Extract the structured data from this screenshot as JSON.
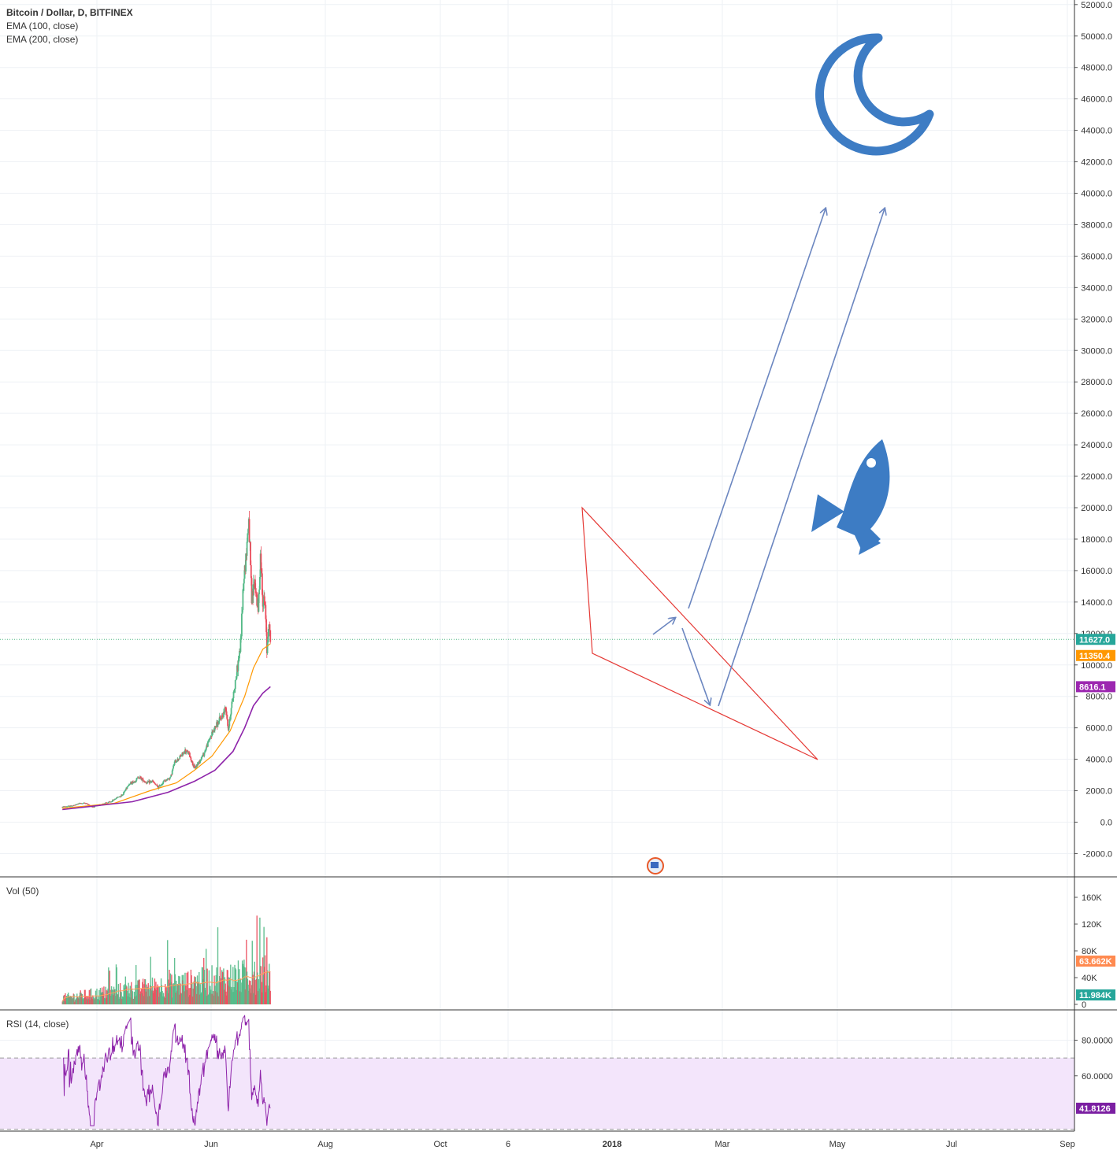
{
  "chart_data": [
    {
      "type": "candlestick",
      "pane": "price",
      "title": "Bitcoin / Dollar, D, BITFINEX",
      "indicators": [
        "EMA (100, close)",
        "EMA (200, close)"
      ],
      "y_ticks": [
        "52000.0",
        "50000.0",
        "48000.0",
        "46000.0",
        "44000.0",
        "42000.0",
        "40000.0",
        "38000.0",
        "36000.0",
        "34000.0",
        "32000.0",
        "30000.0",
        "28000.0",
        "26000.0",
        "24000.0",
        "22000.0",
        "20000.0",
        "18000.0",
        "16000.0",
        "14000.0",
        "12000.0",
        "10000.0",
        "8000.0",
        "6000.0",
        "4000.0",
        "2000.0",
        "0.0",
        "-2000.0"
      ],
      "ylim": [
        -2000,
        52000
      ],
      "x_labels": [
        "Apr",
        "Jun",
        "Aug",
        "Oct",
        "6",
        "2018",
        "Mar",
        "May",
        "Jul",
        "Sep"
      ],
      "close_path": [
        [
          "2017-02-01",
          970
        ],
        [
          "2017-02-20",
          1050
        ],
        [
          "2017-03-01",
          1180
        ],
        [
          "2017-03-12",
          1220
        ],
        [
          "2017-03-25",
          960
        ],
        [
          "2017-04-10",
          1150
        ],
        [
          "2017-04-25",
          1300
        ],
        [
          "2017-05-05",
          1550
        ],
        [
          "2017-05-15",
          1750
        ],
        [
          "2017-05-25",
          2400
        ],
        [
          "2017-06-05",
          2600
        ],
        [
          "2017-06-12",
          2900
        ],
        [
          "2017-06-25",
          2500
        ],
        [
          "2017-07-05",
          2600
        ],
        [
          "2017-07-15",
          2200
        ],
        [
          "2017-07-25",
          2600
        ],
        [
          "2017-08-05",
          2850
        ],
        [
          "2017-08-12",
          3800
        ],
        [
          "2017-08-20",
          4100
        ],
        [
          "2017-08-30",
          4500
        ],
        [
          "2017-09-05",
          4400
        ],
        [
          "2017-09-15",
          3400
        ],
        [
          "2017-09-22",
          3800
        ],
        [
          "2017-10-01",
          4350
        ],
        [
          "2017-10-12",
          5400
        ],
        [
          "2017-10-20",
          6000
        ],
        [
          "2017-11-01",
          6700
        ],
        [
          "2017-11-08",
          7300
        ],
        [
          "2017-11-12",
          5900
        ],
        [
          "2017-11-20",
          8000
        ],
        [
          "2017-11-28",
          9900
        ],
        [
          "2017-12-03",
          11300
        ],
        [
          "2017-12-08",
          15500
        ],
        [
          "2017-12-12",
          16800
        ],
        [
          "2017-12-17",
          19300
        ],
        [
          "2017-12-22",
          14000
        ],
        [
          "2017-12-27",
          15400
        ],
        [
          "2018-01-02",
          13400
        ],
        [
          "2018-01-06",
          17000
        ],
        [
          "2018-01-10",
          14200
        ],
        [
          "2018-01-14",
          13700
        ],
        [
          "2018-01-17",
          10900
        ],
        [
          "2018-01-20",
          12700
        ],
        [
          "2018-01-23",
          11627
        ]
      ],
      "ema100_path": [
        [
          "2017-02-01",
          880
        ],
        [
          "2017-05-01",
          1200
        ],
        [
          "2017-07-01",
          2000
        ],
        [
          "2017-08-15",
          2500
        ],
        [
          "2017-09-15",
          3300
        ],
        [
          "2017-10-15",
          4200
        ],
        [
          "2017-11-15",
          5800
        ],
        [
          "2017-12-10",
          8000
        ],
        [
          "2017-12-25",
          9800
        ],
        [
          "2018-01-10",
          11000
        ],
        [
          "2018-01-23",
          11350.4
        ]
      ],
      "ema200_path": [
        [
          "2017-02-01",
          800
        ],
        [
          "2017-06-01",
          1300
        ],
        [
          "2017-08-01",
          1900
        ],
        [
          "2017-09-15",
          2600
        ],
        [
          "2017-10-20",
          3300
        ],
        [
          "2017-11-20",
          4500
        ],
        [
          "2017-12-10",
          6000
        ],
        [
          "2017-12-25",
          7400
        ],
        [
          "2018-01-10",
          8200
        ],
        [
          "2018-01-23",
          8616.1
        ]
      ],
      "price_labels": [
        {
          "text": "11627.0",
          "value": 11627,
          "color": "#26a69a"
        },
        {
          "text": "11350.4",
          "value": 11350.4,
          "color": "#ff9800"
        },
        {
          "text": "8616.1",
          "value": 8616.1,
          "color": "#9c27b0"
        }
      ]
    },
    {
      "type": "bar",
      "pane": "volume",
      "title": "Vol (50)",
      "y_ticks": [
        "160K",
        "120K",
        "80K",
        "40K",
        "0"
      ],
      "ylim": [
        0,
        170000
      ],
      "price_labels": [
        {
          "text": "63.662K",
          "value": 63662,
          "color": "#ff8a50"
        },
        {
          "text": "11.984K",
          "value": 11984,
          "color": "#26a69a"
        }
      ]
    },
    {
      "type": "line",
      "pane": "rsi",
      "title": "RSI (14, close)",
      "y_ticks": [
        "80.0000",
        "60.0000"
      ],
      "ylim": [
        27,
        97
      ],
      "band": [
        30,
        70
      ],
      "price_labels": [
        {
          "text": "41.8126",
          "value": 41.8126,
          "color": "#7b1fa2"
        }
      ]
    }
  ],
  "colors": {
    "up": "#53b987",
    "down": "#eb4d5c",
    "ema100": "#ff9800",
    "ema200": "#8e24aa",
    "trendline": "#e53935",
    "arrow": "#6b86c0",
    "icon": "#3d7cc4",
    "rsi_band": "#f3e5fb",
    "grid": "#eef1f5"
  },
  "icons": [
    "moon-icon",
    "rocket-icon"
  ]
}
